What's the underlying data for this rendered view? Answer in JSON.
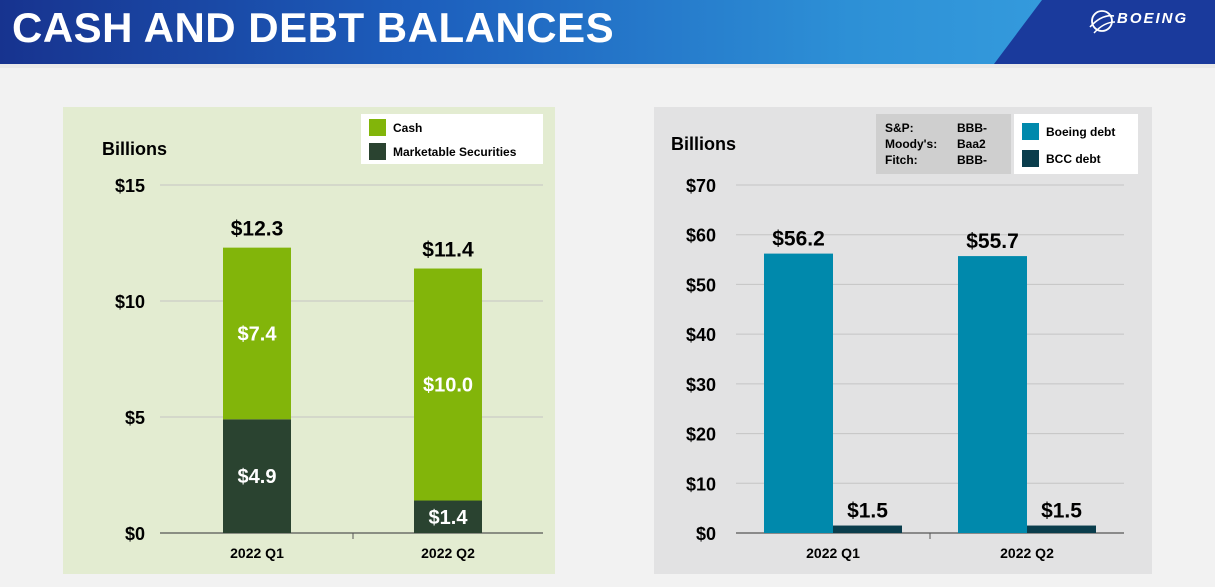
{
  "header": {
    "title": "CASH AND DEBT BALANCES",
    "logo_text": "BOEING",
    "colors": {
      "title_bar": "#1d5fbd",
      "logo_block": "#1a3a9c"
    }
  },
  "chart_data": [
    {
      "type": "bar",
      "stacked": true,
      "ylabel": "Billions",
      "categories": [
        "2022 Q1",
        "2022 Q2"
      ],
      "series": [
        {
          "name": "Marketable Securities",
          "values": [
            4.9,
            1.4
          ],
          "labels": [
            "$4.9",
            "$1.4"
          ],
          "color": "#2a4330"
        },
        {
          "name": "Cash",
          "values": [
            7.4,
            10.0
          ],
          "labels": [
            "$7.4",
            "$10.0"
          ],
          "color": "#82b50a"
        }
      ],
      "totals": [
        12.3,
        11.4
      ],
      "total_labels": [
        "$12.3",
        "$11.4"
      ],
      "ylim": [
        0,
        15
      ],
      "yticks": [
        0,
        5,
        10,
        15
      ],
      "ytick_labels": [
        "$0",
        "$5",
        "$10",
        "$15"
      ],
      "grid": true,
      "legend_position": "top-right",
      "legend": [
        {
          "name": "Cash",
          "color": "#82b50a"
        },
        {
          "name": "Marketable Securities",
          "color": "#2a4330"
        }
      ]
    },
    {
      "type": "bar",
      "stacked": false,
      "ylabel": "Billions",
      "categories": [
        "2022 Q1",
        "2022 Q2"
      ],
      "series": [
        {
          "name": "Boeing debt",
          "values": [
            56.2,
            55.7
          ],
          "labels": [
            "$56.2",
            "$55.7"
          ],
          "color": "#0089ac"
        },
        {
          "name": "BCC debt",
          "values": [
            1.5,
            1.5
          ],
          "labels": [
            "$1.5",
            "$1.5"
          ],
          "color": "#0a3d4c"
        }
      ],
      "ylim": [
        0,
        70
      ],
      "yticks": [
        0,
        10,
        20,
        30,
        40,
        50,
        60,
        70
      ],
      "ytick_labels": [
        "$0",
        "$10",
        "$20",
        "$30",
        "$40",
        "$50",
        "$60",
        "$70"
      ],
      "grid": true,
      "legend_position": "top-right",
      "legend": [
        {
          "name": "Boeing debt",
          "color": "#0089ac"
        },
        {
          "name": "BCC debt",
          "color": "#0a3d4c"
        }
      ],
      "ratings": [
        {
          "agency": "S&P:",
          "rating": "BBB-"
        },
        {
          "agency": "Moody's:",
          "rating": "Baa2"
        },
        {
          "agency": "Fitch:",
          "rating": "BBB-"
        }
      ]
    }
  ]
}
